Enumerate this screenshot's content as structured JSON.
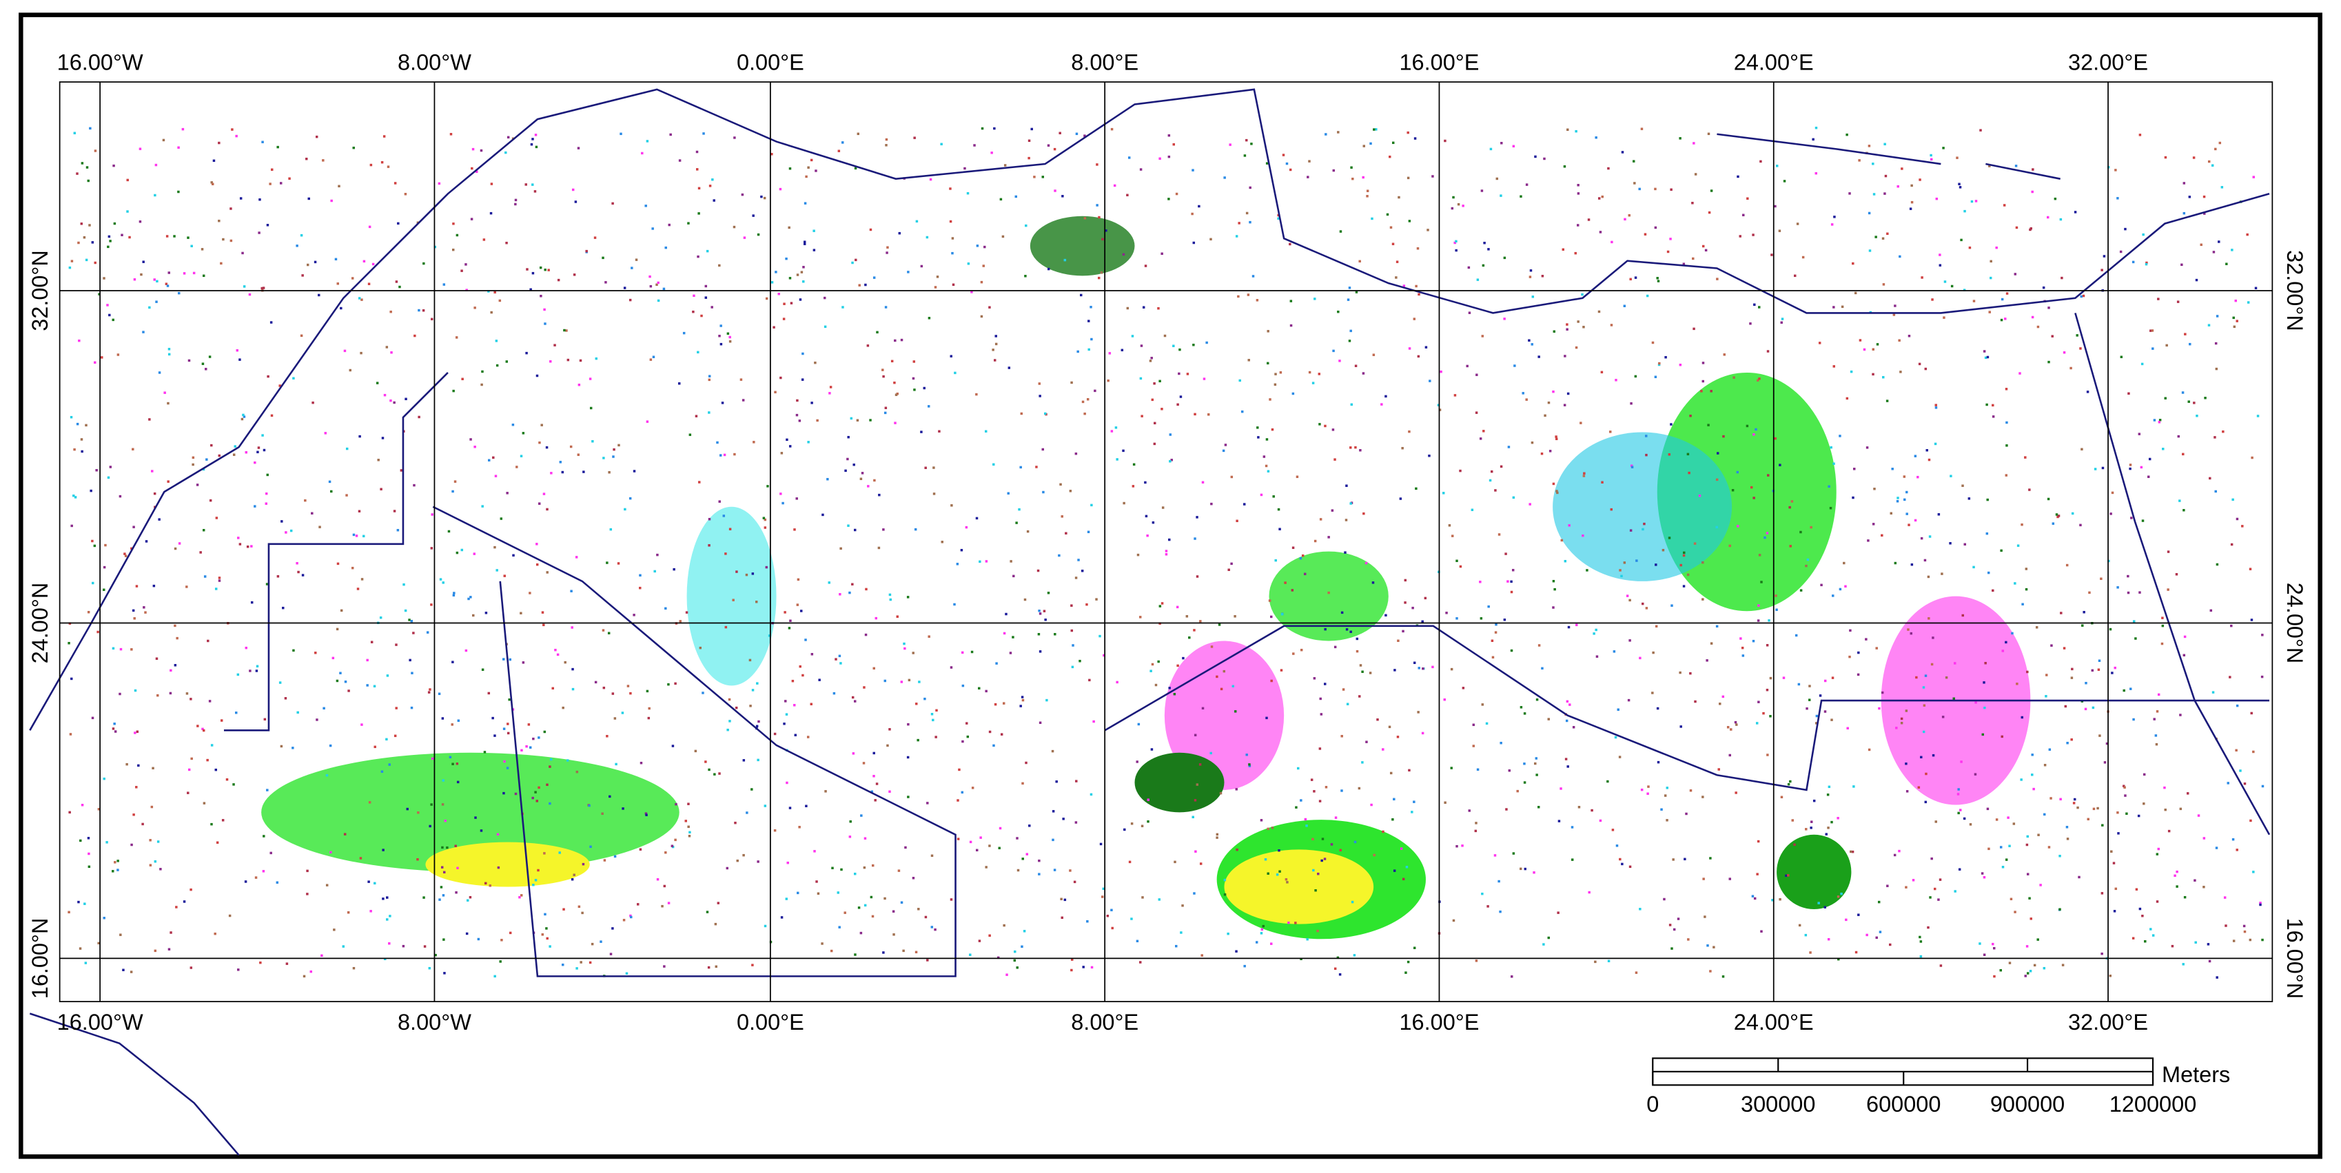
{
  "map": {
    "lon_labels": [
      "16.00°W",
      "8.00°W",
      "0.00°E",
      "8.00°E",
      "16.00°E",
      "24.00°E",
      "32.00°E"
    ],
    "lat_labels": [
      "32.00°N",
      "24.00°N",
      "16.00°N"
    ],
    "scale": {
      "unit": "Meters",
      "labels": [
        "0",
        "300000",
        "600000",
        "900000",
        "1200000"
      ]
    }
  }
}
